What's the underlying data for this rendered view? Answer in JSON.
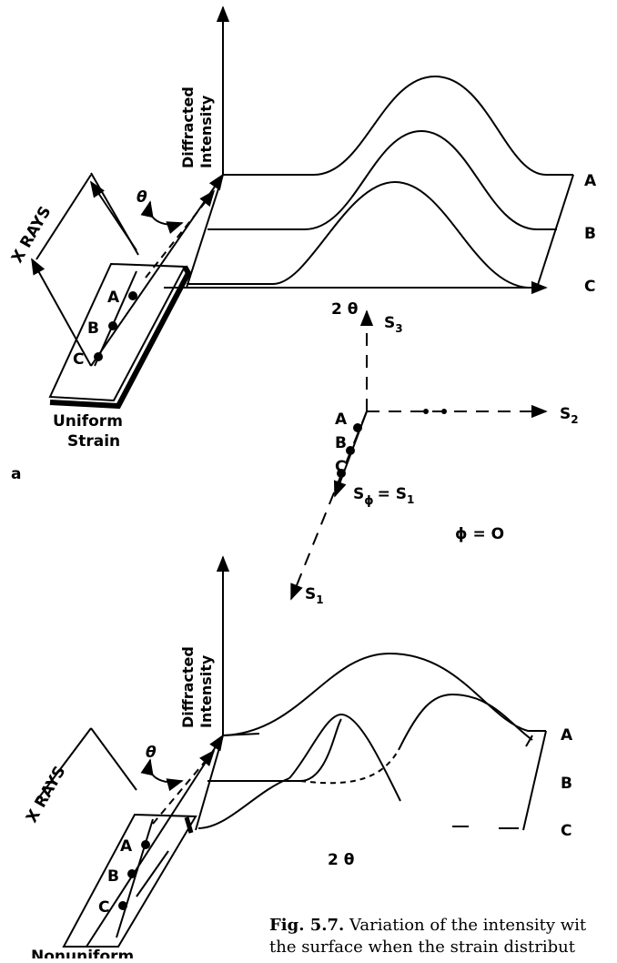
{
  "panel_a": {
    "panel_label": "a",
    "y_axis_label_line1": "Diffracted",
    "y_axis_label_line2": "Intensity",
    "x_axis_label": "2 θ",
    "xray_label": "X RAYS",
    "theta_label": "θ",
    "curve_labels": [
      "A",
      "B",
      "C"
    ],
    "point_labels": [
      "A",
      "B",
      "C"
    ],
    "sample_label_line1": "Uniform",
    "sample_label_line2": "Strain"
  },
  "coordinate_system": {
    "s3_label": "S",
    "s3_sub": "3",
    "s2_label": "S",
    "s2_sub": "2",
    "s1_label": "S",
    "s1_sub": "1",
    "sphi_label": "S",
    "sphi_sub": "ϕ",
    "sphi_eq": "= S",
    "sphi_eq_sub": "1",
    "phi_label": "ϕ = O",
    "point_labels": [
      "A",
      "B",
      "C"
    ]
  },
  "panel_b": {
    "y_axis_label_line1": "Diffracted",
    "y_axis_label_line2": "Intensity",
    "x_axis_label": "2 θ",
    "xray_label": "X RAYS",
    "theta_label": "θ",
    "curve_labels": [
      "A",
      "B",
      "C"
    ],
    "point_labels": [
      "A",
      "B",
      "C"
    ],
    "sample_label_line1": "Nonuniform"
  },
  "caption": {
    "fig_number": "Fig. 5.7.",
    "line1_text": " Variation of the intensity wit",
    "line2_text": "the surface when the strain distribut"
  }
}
